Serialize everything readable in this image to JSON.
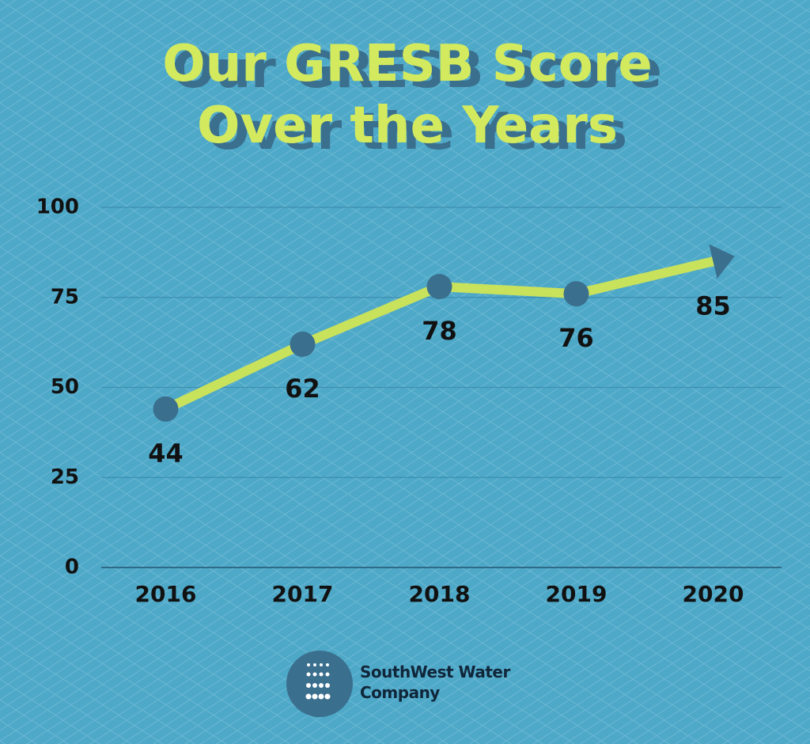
{
  "chart_data": {
    "type": "line",
    "title": "Our GRESB Score Over the Years",
    "categories": [
      "2016",
      "2017",
      "2018",
      "2019",
      "2020"
    ],
    "values": [
      44,
      62,
      78,
      76,
      85
    ],
    "color": "#c9e25c",
    "marker_color": "#3b6f8e",
    "ylim": [
      0,
      100
    ],
    "yticks": [
      0,
      25,
      50,
      75,
      100
    ],
    "grid": true,
    "brand": "SouthWest Water Company"
  }
}
